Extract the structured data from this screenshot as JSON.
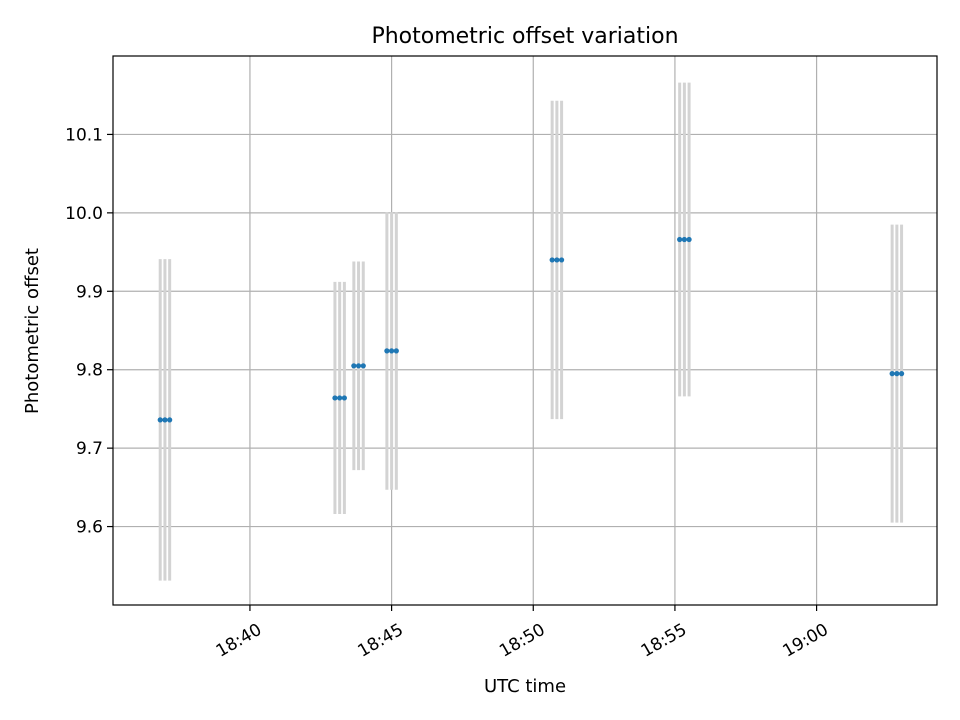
{
  "chart_data": {
    "type": "scatter",
    "title": "Photometric offset variation",
    "xlabel": "UTC time",
    "ylabel": "Photometric offset",
    "xlim": [
      "18:35:10",
      "19:04:15"
    ],
    "ylim": [
      9.5,
      10.2
    ],
    "x_ticks": [
      "18:40",
      "18:45",
      "18:50",
      "18:55",
      "19:00"
    ],
    "y_ticks": [
      "9.6",
      "9.7",
      "9.8",
      "9.9",
      "10.0",
      "10.1"
    ],
    "grid": true,
    "point_color": "#1f77b4",
    "errorbar_color": "#d3d3d3",
    "groups": [
      {
        "times": [
          "18:36:50",
          "18:37:00",
          "18:37:10"
        ],
        "y": 9.736,
        "err": 0.205
      },
      {
        "times": [
          "18:43:00",
          "18:43:10",
          "18:43:20"
        ],
        "y": 9.764,
        "err": 0.148
      },
      {
        "times": [
          "18:43:40",
          "18:43:50",
          "18:44:00"
        ],
        "y": 9.805,
        "err": 0.133
      },
      {
        "times": [
          "18:44:50",
          "18:45:00",
          "18:45:10"
        ],
        "y": 9.824,
        "err": 0.177
      },
      {
        "times": [
          "18:50:40",
          "18:50:50",
          "18:51:00"
        ],
        "y": 9.94,
        "err": 0.203
      },
      {
        "times": [
          "18:55:10",
          "18:55:20",
          "18:55:30"
        ],
        "y": 9.966,
        "err": 0.2
      },
      {
        "times": [
          "19:02:40",
          "19:02:50",
          "19:03:00"
        ],
        "y": 9.795,
        "err": 0.19
      }
    ]
  }
}
